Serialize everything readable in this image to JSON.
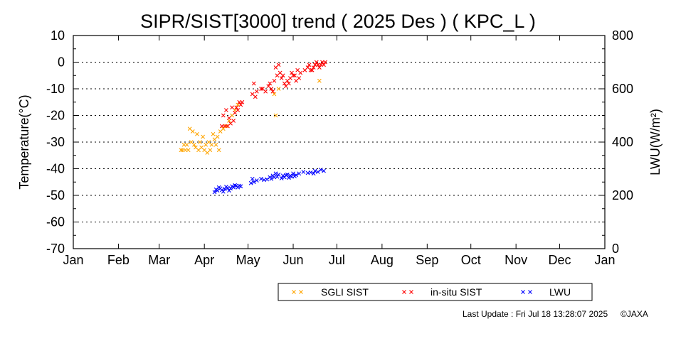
{
  "chart_data": {
    "type": "scatter",
    "title": "SIPR/SIST[3000] trend ( 2025 Des ) ( KPC_L )",
    "ylabel": "Temperature(°C)",
    "y2label": "LWU(W/m²)",
    "ylim": [
      -70,
      10
    ],
    "y2lim": [
      0,
      800
    ],
    "yticks": [
      "10",
      "0",
      "-10",
      "-20",
      "-30",
      "-40",
      "-50",
      "-60",
      "-70"
    ],
    "y2ticks": [
      "800",
      "600",
      "400",
      "200",
      "0"
    ],
    "x_ticks": [
      "Jan",
      "Feb",
      "Mar",
      "Apr",
      "May",
      "Jun",
      "Jul",
      "Aug",
      "Sep",
      "Oct",
      "Nov",
      "Dec",
      "Jan"
    ],
    "grid": true,
    "legend_position": "bottom-right",
    "series": [
      {
        "name": "SGLI SIST",
        "color": "#ffa500",
        "axis": "left",
        "marker": "x",
        "points": [
          [
            "2025-03-16",
            -33
          ],
          [
            "2025-03-17",
            -33
          ],
          [
            "2025-03-18",
            -31
          ],
          [
            "2025-03-19",
            -33
          ],
          [
            "2025-03-20",
            -31
          ],
          [
            "2025-03-21",
            -33
          ],
          [
            "2025-03-22",
            -25
          ],
          [
            "2025-03-23",
            -30
          ],
          [
            "2025-03-24",
            -26
          ],
          [
            "2025-03-25",
            -31
          ],
          [
            "2025-03-26",
            -32
          ],
          [
            "2025-03-27",
            -27
          ],
          [
            "2025-03-28",
            -33
          ],
          [
            "2025-03-29",
            -30
          ],
          [
            "2025-03-30",
            -32
          ],
          [
            "2025-03-31",
            -28
          ],
          [
            "2025-04-01",
            -33
          ],
          [
            "2025-04-02",
            -31
          ],
          [
            "2025-04-03",
            -34
          ],
          [
            "2025-04-04",
            -30
          ],
          [
            "2025-04-05",
            -33
          ],
          [
            "2025-04-06",
            -31
          ],
          [
            "2025-04-07",
            -27
          ],
          [
            "2025-04-08",
            -29
          ],
          [
            "2025-04-09",
            -31
          ],
          [
            "2025-04-10",
            -28
          ],
          [
            "2025-04-11",
            -33
          ],
          [
            "2025-04-12",
            -26
          ],
          [
            "2025-04-14",
            -25
          ],
          [
            "2025-04-16",
            -24
          ],
          [
            "2025-04-18",
            -22
          ],
          [
            "2025-04-20",
            -20
          ],
          [
            "2025-04-22",
            -18
          ],
          [
            "2025-04-24",
            -16
          ],
          [
            "2025-05-19",
            -12
          ],
          [
            "2025-05-20",
            -20
          ],
          [
            "2025-05-22",
            -10
          ],
          [
            "2025-06-19",
            -7
          ]
        ]
      },
      {
        "name": "in-situ SIST",
        "color": "#ff0000",
        "axis": "left",
        "marker": "x",
        "points": [
          [
            "2025-04-13",
            -24
          ],
          [
            "2025-04-14",
            -20
          ],
          [
            "2025-04-15",
            -24
          ],
          [
            "2025-04-16",
            -18
          ],
          [
            "2025-04-17",
            -24
          ],
          [
            "2025-04-18",
            -21
          ],
          [
            "2025-04-19",
            -23
          ],
          [
            "2025-04-20",
            -17
          ],
          [
            "2025-04-21",
            -22
          ],
          [
            "2025-04-22",
            -19
          ],
          [
            "2025-04-23",
            -17
          ],
          [
            "2025-04-24",
            -18
          ],
          [
            "2025-04-25",
            -15
          ],
          [
            "2025-04-26",
            -16
          ],
          [
            "2025-04-27",
            -15
          ],
          [
            "2025-05-04",
            -12
          ],
          [
            "2025-05-05",
            -8
          ],
          [
            "2025-05-06",
            -13
          ],
          [
            "2025-05-07",
            -11
          ],
          [
            "2025-05-10",
            -10
          ],
          [
            "2025-05-11",
            -10
          ],
          [
            "2025-05-13",
            -11
          ],
          [
            "2025-05-15",
            -9
          ],
          [
            "2025-05-16",
            -8
          ],
          [
            "2025-05-17",
            -10
          ],
          [
            "2025-05-18",
            -11
          ],
          [
            "2025-05-19",
            -7
          ],
          [
            "2025-05-20",
            -2
          ],
          [
            "2025-05-21",
            -5
          ],
          [
            "2025-05-22",
            -1
          ],
          [
            "2025-05-23",
            -4
          ],
          [
            "2025-05-24",
            -6
          ],
          [
            "2025-05-25",
            -5
          ],
          [
            "2025-05-26",
            -8
          ],
          [
            "2025-05-27",
            -9
          ],
          [
            "2025-05-28",
            -7
          ],
          [
            "2025-05-29",
            -8
          ],
          [
            "2025-05-30",
            -6
          ],
          [
            "2025-05-31",
            -4
          ],
          [
            "2025-06-01",
            -5
          ],
          [
            "2025-06-02",
            -5
          ],
          [
            "2025-06-03",
            -7
          ],
          [
            "2025-06-04",
            -3
          ],
          [
            "2025-06-05",
            -6
          ],
          [
            "2025-06-06",
            -4
          ],
          [
            "2025-06-09",
            -3
          ],
          [
            "2025-06-11",
            -2
          ],
          [
            "2025-06-12",
            -1
          ],
          [
            "2025-06-13",
            -3
          ],
          [
            "2025-06-14",
            -3
          ],
          [
            "2025-06-15",
            -2
          ],
          [
            "2025-06-16",
            -1
          ],
          [
            "2025-06-17",
            0
          ],
          [
            "2025-06-18",
            -1
          ],
          [
            "2025-06-19",
            -2
          ],
          [
            "2025-06-20",
            -1
          ],
          [
            "2025-06-21",
            0
          ],
          [
            "2025-06-22",
            -1
          ],
          [
            "2025-06-23",
            0
          ]
        ]
      },
      {
        "name": "LWU",
        "color": "#0000ff",
        "axis": "right",
        "marker": "x",
        "points": [
          [
            "2025-04-08",
            212
          ],
          [
            "2025-04-09",
            222
          ],
          [
            "2025-04-10",
            218
          ],
          [
            "2025-04-11",
            230
          ],
          [
            "2025-04-12",
            226
          ],
          [
            "2025-04-13",
            220
          ],
          [
            "2025-04-14",
            214
          ],
          [
            "2025-04-15",
            224
          ],
          [
            "2025-04-16",
            232
          ],
          [
            "2025-04-17",
            228
          ],
          [
            "2025-04-18",
            218
          ],
          [
            "2025-04-19",
            226
          ],
          [
            "2025-04-20",
            234
          ],
          [
            "2025-04-21",
            230
          ],
          [
            "2025-04-22",
            238
          ],
          [
            "2025-04-23",
            236
          ],
          [
            "2025-04-24",
            230
          ],
          [
            "2025-04-25",
            236
          ],
          [
            "2025-04-26",
            234
          ],
          [
            "2025-05-03",
            246
          ],
          [
            "2025-05-04",
            262
          ],
          [
            "2025-05-05",
            250
          ],
          [
            "2025-05-07",
            256
          ],
          [
            "2025-05-10",
            262
          ],
          [
            "2025-05-12",
            258
          ],
          [
            "2025-05-14",
            260
          ],
          [
            "2025-05-16",
            268
          ],
          [
            "2025-05-17",
            262
          ],
          [
            "2025-05-18",
            274
          ],
          [
            "2025-05-19",
            268
          ],
          [
            "2025-05-20",
            282
          ],
          [
            "2025-05-21",
            270
          ],
          [
            "2025-05-22",
            278
          ],
          [
            "2025-05-24",
            264
          ],
          [
            "2025-05-25",
            274
          ],
          [
            "2025-05-26",
            268
          ],
          [
            "2025-05-27",
            276
          ],
          [
            "2025-05-28",
            278
          ],
          [
            "2025-05-29",
            266
          ],
          [
            "2025-05-30",
            274
          ],
          [
            "2025-05-31",
            270
          ],
          [
            "2025-06-01",
            282
          ],
          [
            "2025-06-02",
            272
          ],
          [
            "2025-06-03",
            276
          ],
          [
            "2025-06-05",
            282
          ],
          [
            "2025-06-08",
            288
          ],
          [
            "2025-06-11",
            284
          ],
          [
            "2025-06-13",
            286
          ],
          [
            "2025-06-15",
            282
          ],
          [
            "2025-06-16",
            292
          ],
          [
            "2025-06-18",
            288
          ],
          [
            "2025-06-20",
            296
          ],
          [
            "2025-06-22",
            292
          ]
        ]
      }
    ]
  },
  "footer": {
    "last_update": "Last Update : Fri Jul 18 13:28:07 2025",
    "copyright": "©JAXA"
  }
}
